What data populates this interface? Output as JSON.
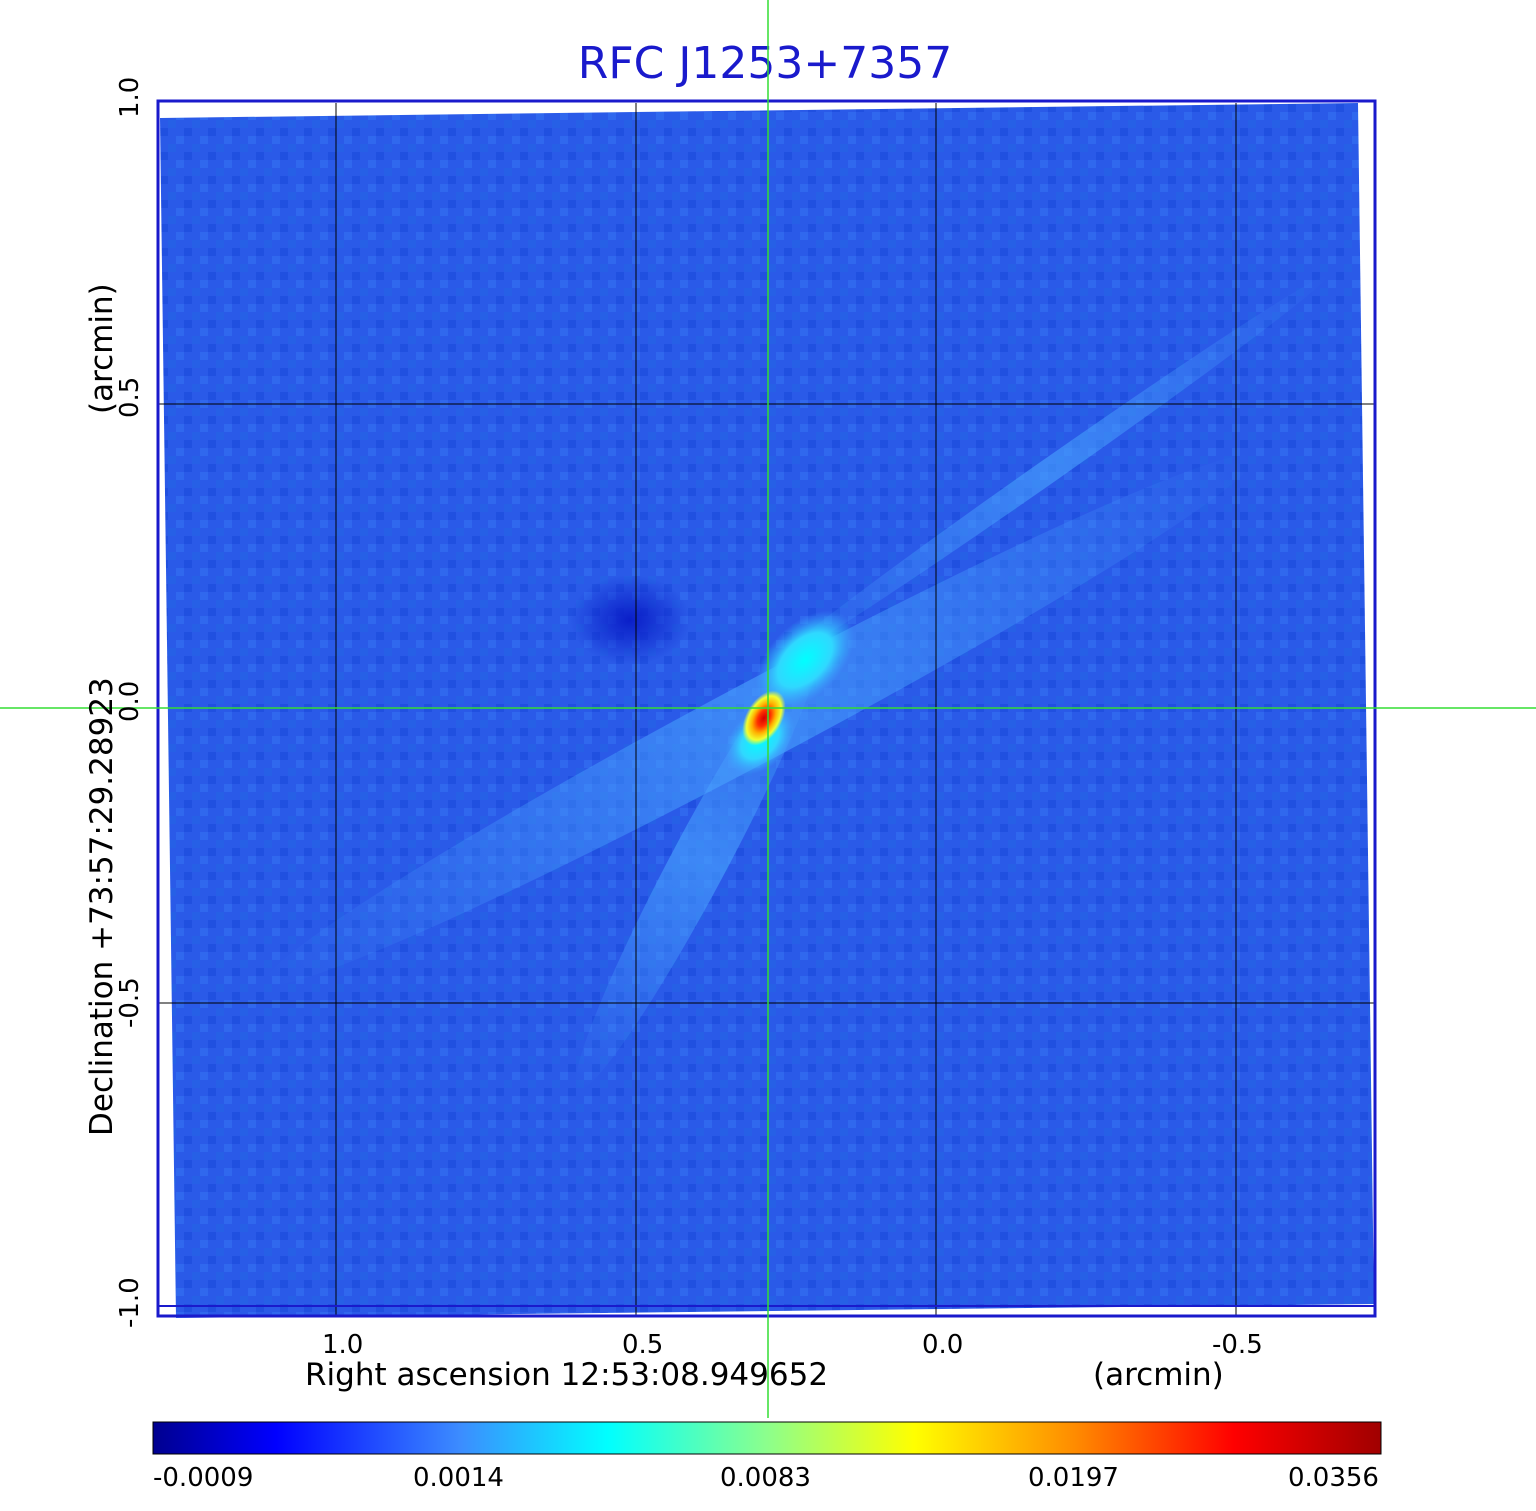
{
  "title": "RFC J1253+7357",
  "y_axis": {
    "label": "Declination  +73:57:29.28923",
    "unit": "(arcmin)",
    "ticks": [
      "1.0",
      "0.5",
      "0.0",
      "-0.5",
      "-1.0"
    ]
  },
  "x_axis": {
    "label": "Right ascension  12:53:08.949652",
    "unit": "(arcmin)",
    "ticks": [
      "1.0",
      "0.5",
      "0.0",
      "-0.5"
    ]
  },
  "colorbar": {
    "labels": [
      "-0.0009",
      "0.0014",
      "0.0083",
      "0.0197",
      "0.0356"
    ],
    "colors": [
      "#00008f",
      "#0000ff",
      "#3c8cff",
      "#00ffff",
      "#8cff8c",
      "#ffff00",
      "#ff8c00",
      "#ff0000",
      "#a00000"
    ]
  },
  "colors": {
    "frame": "#1a1acc",
    "background_map": "#2a5ae8",
    "crosshair": "#33dd33",
    "grid": "#000000"
  }
}
